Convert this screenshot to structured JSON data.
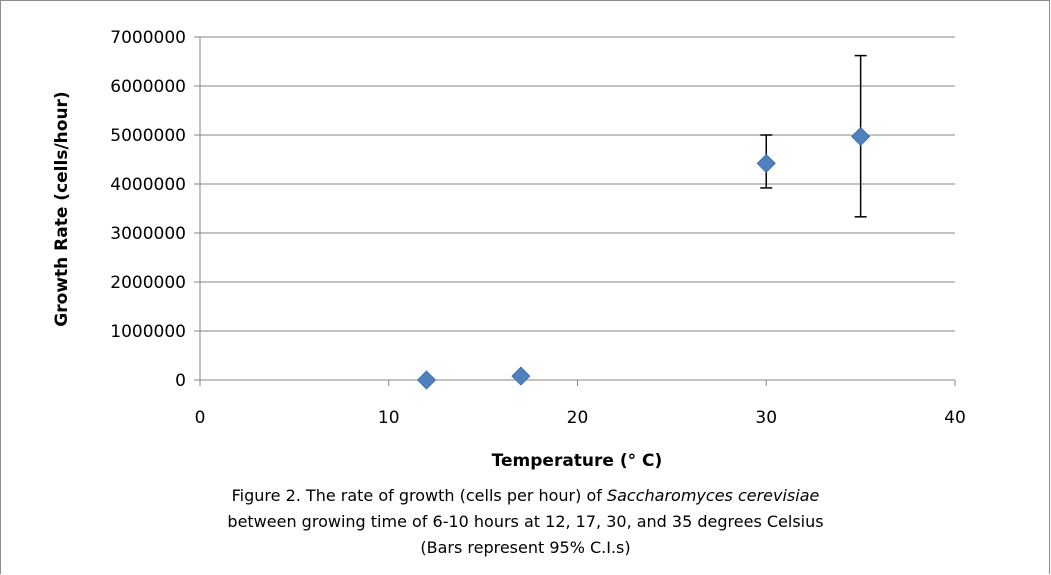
{
  "chart_data": {
    "type": "scatter",
    "xlabel": "Temperature (° C)",
    "ylabel": "Growth Rate  (cells/hour)",
    "xlim": [
      0,
      40
    ],
    "ylim": [
      0,
      7000000
    ],
    "xticks": [
      0,
      10,
      20,
      30,
      40
    ],
    "yticks": [
      0,
      1000000,
      2000000,
      3000000,
      4000000,
      5000000,
      6000000,
      7000000
    ],
    "grid": "horizontal",
    "legend": "none",
    "marker": "diamond",
    "marker_color": "#4f81bd",
    "error_bars": "95% C.I.",
    "series": [
      {
        "points": [
          {
            "x": 12,
            "y": 0,
            "err_low": 0,
            "err_high": 0
          },
          {
            "x": 17,
            "y": 80000,
            "err_low": 80000,
            "err_high": 80000
          },
          {
            "x": 30,
            "y": 4420000,
            "err_low": 3920000,
            "err_high": 5000000
          },
          {
            "x": 35,
            "y": 4970000,
            "err_low": 3330000,
            "err_high": 6620000
          }
        ]
      }
    ]
  },
  "caption": {
    "line1_prefix": "Figure 2. The rate of growth (cells per hour) of ",
    "line1_species": "Saccharomyces  cerevisiae",
    "line2": "between  growing time of 6-10 hours at 12, 17, 30, and 35 degrees Celsius",
    "line3": "(Bars represent 95% C.I.s)"
  }
}
